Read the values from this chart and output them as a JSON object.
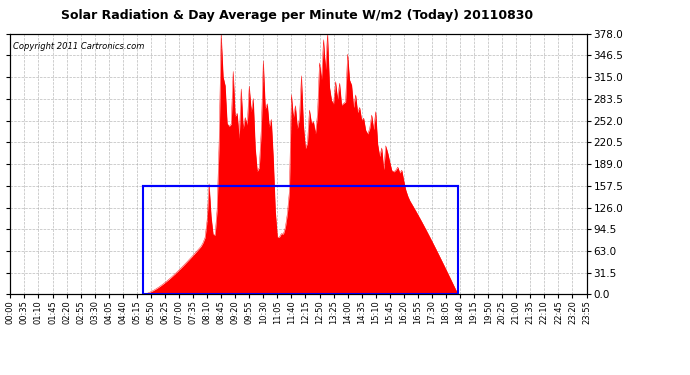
{
  "title": "Solar Radiation & Day Average per Minute W/m2 (Today) 20110830",
  "copyright": "Copyright 2011 Cartronics.com",
  "bg_color": "#FFFFFF",
  "plot_bg_color": "#FFFFFF",
  "fill_color": "#FF0000",
  "box_color": "#0000FF",
  "avg_line_color": "#0000FF",
  "grid_color": "#AAAAAA",
  "yticks": [
    0.0,
    31.5,
    63.0,
    94.5,
    126.0,
    157.5,
    189.0,
    220.5,
    252.0,
    283.5,
    315.0,
    346.5,
    378.0
  ],
  "ymax": 378.0,
  "ymin": 0.0,
  "avg_value": 157.5,
  "num_points": 288,
  "sunrise_idx": 66,
  "sunset_idx": 223,
  "box_left_time": "05:50",
  "box_right_time": "18:40",
  "xtick_step_min": 35,
  "minutes_per_point": 5
}
